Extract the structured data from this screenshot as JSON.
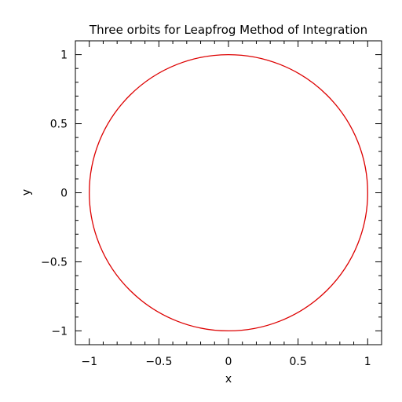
{
  "chart_data": {
    "type": "line",
    "title": "Three orbits for Leapfrog Method of Integration",
    "xlabel": "x",
    "ylabel": "y",
    "xlim": [
      -1.1,
      1.1
    ],
    "ylim": [
      -1.1,
      1.1
    ],
    "x_ticks": [
      -1,
      -0.5,
      0,
      0.5,
      1
    ],
    "y_ticks": [
      -1,
      -0.5,
      0,
      0.5,
      1
    ],
    "x_tick_labels": [
      "−1",
      "−0.5",
      "0",
      "0.5",
      "1"
    ],
    "y_tick_labels": [
      "−1",
      "−0.5",
      "0",
      "0.5",
      "1"
    ],
    "minor_tick_step": 0.1,
    "grid": false,
    "legend": "none",
    "series": [
      {
        "shape": "circle",
        "center": [
          0,
          0
        ],
        "radius": 1.0,
        "color": "#dd0000"
      }
    ]
  }
}
